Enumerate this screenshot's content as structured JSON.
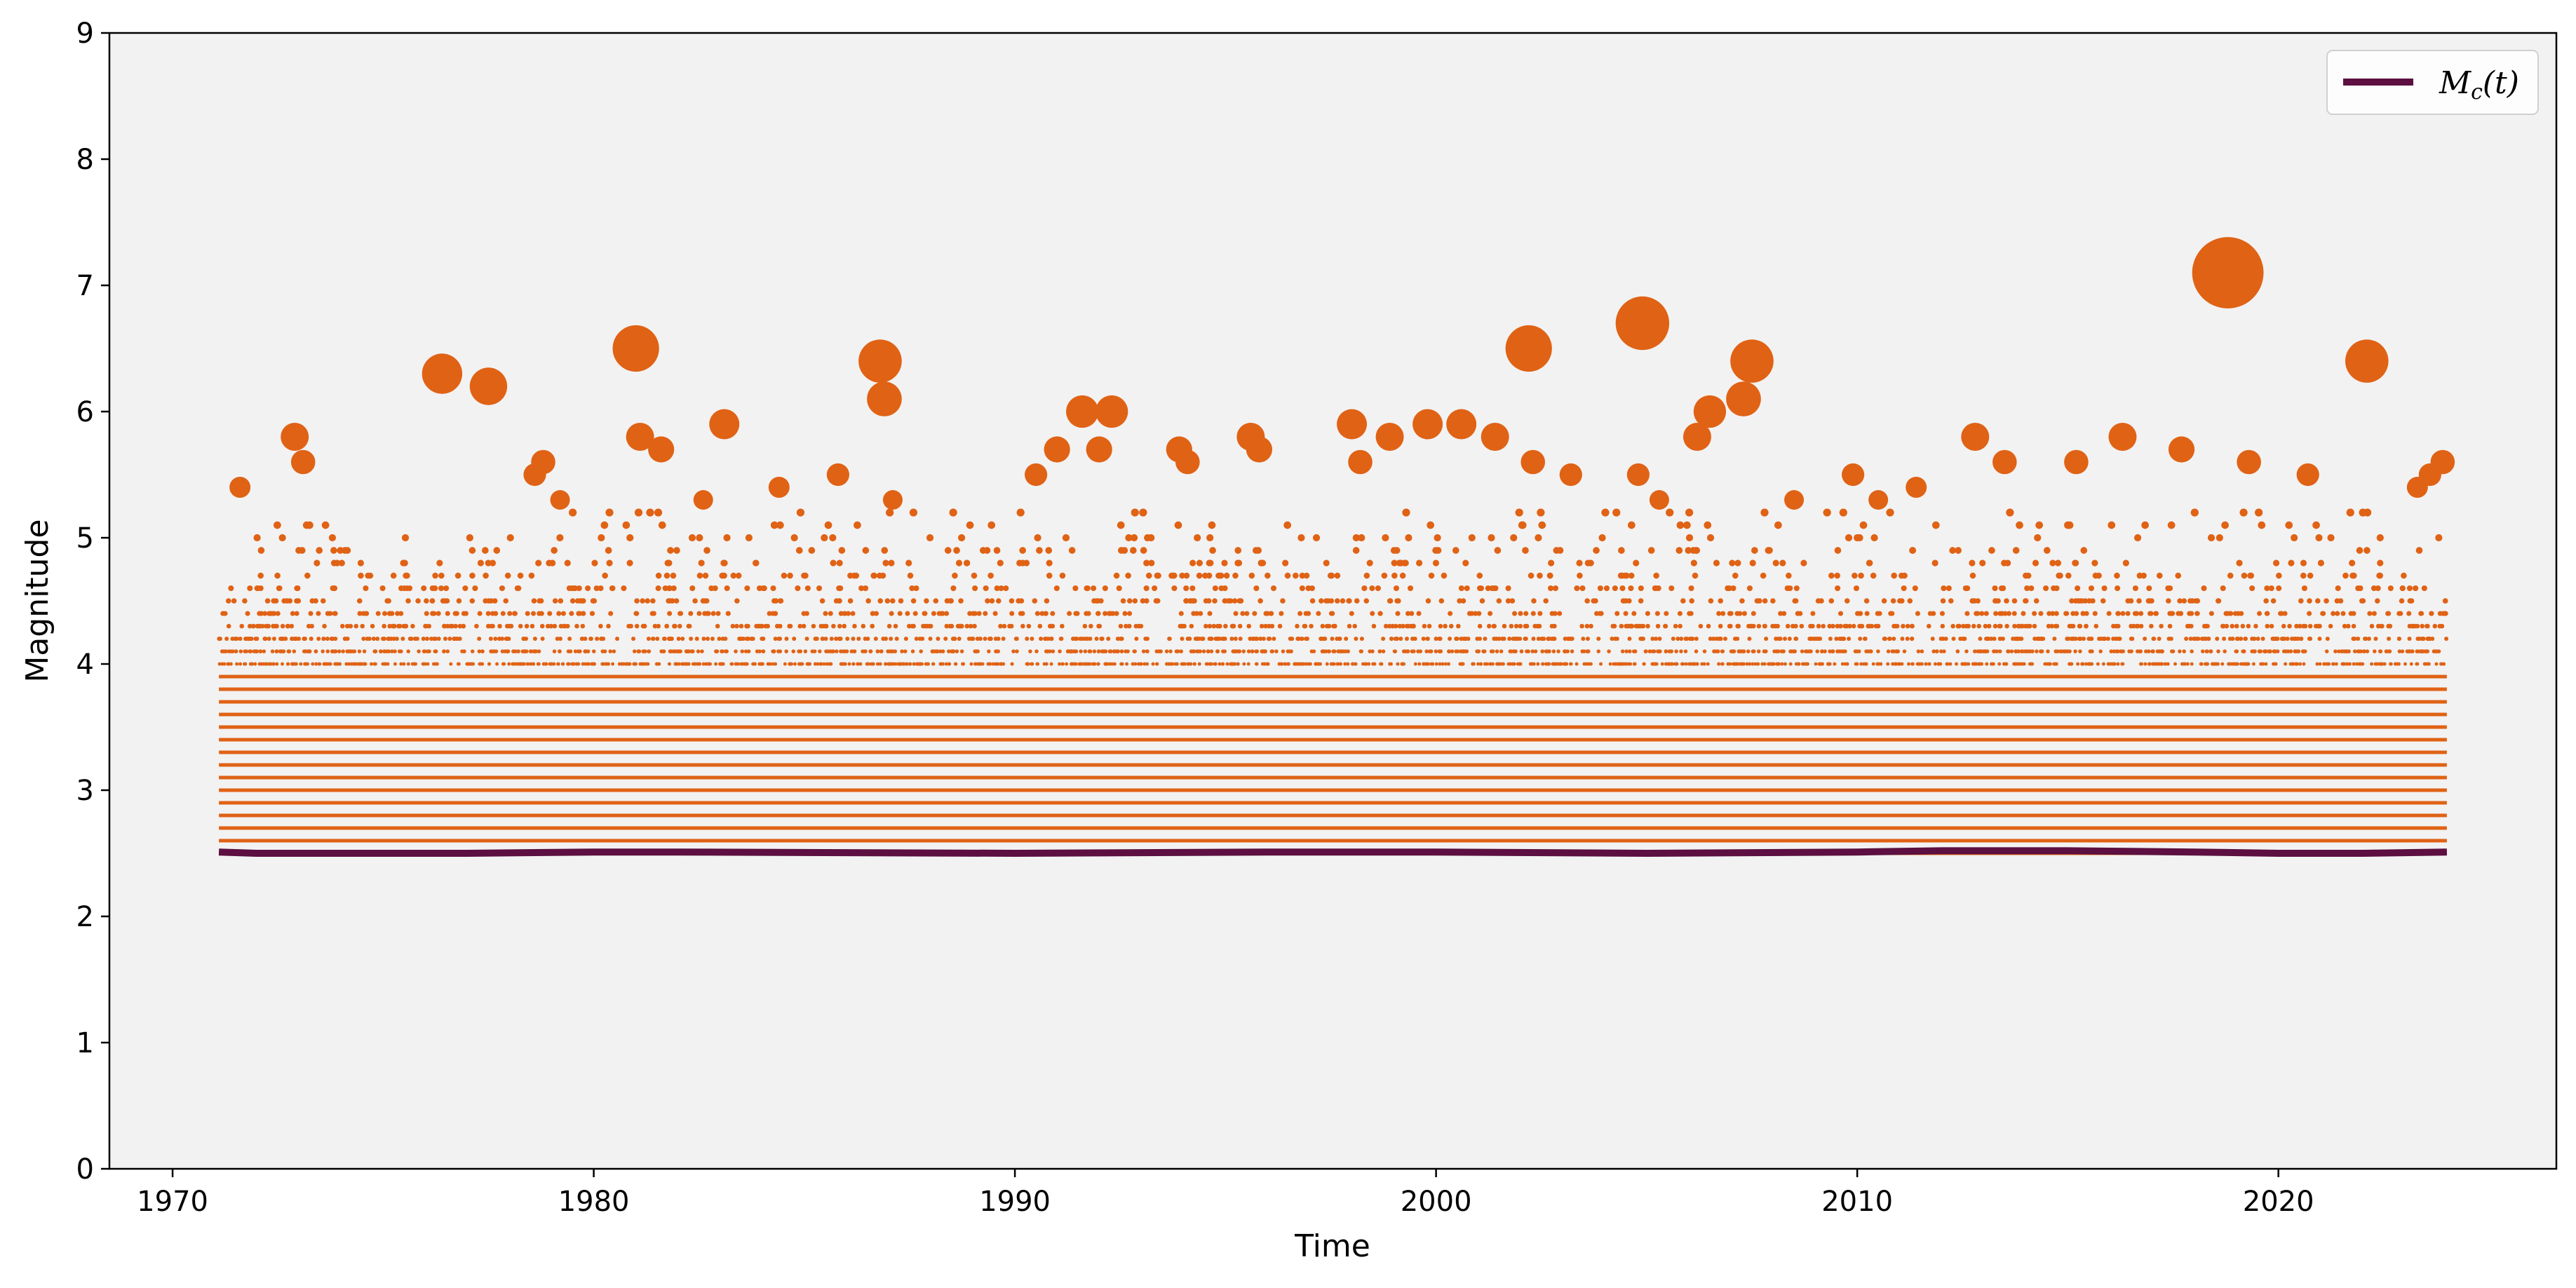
{
  "chart_data": {
    "type": "scatter",
    "title": "",
    "xlabel": "Time",
    "ylabel": "Magnitude",
    "xlim": [
      1968.5,
      2026.6
    ],
    "ylim": [
      0,
      9
    ],
    "xticks": [
      "1970",
      "1980",
      "1990",
      "2000",
      "2010",
      "2020"
    ],
    "yticks": [
      "0",
      "1",
      "2",
      "3",
      "4",
      "5",
      "6",
      "7",
      "8",
      "9"
    ],
    "grid": false,
    "background": "#f2f2f2",
    "legend": {
      "placement": "top-right",
      "entries": [
        "M_c(t)"
      ]
    },
    "colors": {
      "events": "#e06215",
      "mc_line": "#5c0f40"
    },
    "dense_band": {
      "x_start": 1971.1,
      "x_end": 2024.0,
      "m_min": 2.5,
      "m_max": 3.9,
      "step": 0.1
    },
    "mc_series": {
      "name": "M_c(t)",
      "x": [
        1971.1,
        1972.0,
        1977.0,
        1980.0,
        1982.0,
        1990.0,
        1996.0,
        2000.0,
        2005.0,
        2010.0,
        2012.0,
        2015.0,
        2018.0,
        2020.0,
        2022.0,
        2024.0
      ],
      "y": [
        2.51,
        2.5,
        2.5,
        2.51,
        2.51,
        2.5,
        2.51,
        2.51,
        2.5,
        2.51,
        2.52,
        2.52,
        2.51,
        2.5,
        2.5,
        2.51
      ]
    },
    "large_events": {
      "x": [
        1976.4,
        1977.5,
        1981.0,
        1986.8,
        1986.9,
        1991.6,
        1992.3,
        2002.2,
        2004.9,
        2006.5,
        2007.3,
        2007.5,
        2018.8,
        2022.1,
        1972.9,
        1973.1,
        1978.8,
        1981.1,
        1981.6,
        1983.1,
        1985.8,
        1990.5,
        1991.0,
        1992.0,
        1993.9,
        1994.1,
        1995.6,
        1995.8,
        1998.0,
        1998.2,
        1998.9,
        1999.8,
        2000.6,
        2001.4,
        2002.3,
        2003.2,
        2005.3,
        2006.2,
        2012.8,
        2013.5,
        2015.2,
        2016.3,
        2017.7,
        2019.3,
        2020.7,
        2023.3,
        2023.6,
        2023.9,
        1971.6,
        1978.6,
        1979.2,
        1982.6,
        1984.4,
        1987.1,
        2004.8,
        2008.5,
        2009.9,
        2010.5,
        2011.4
      ],
      "y": [
        6.3,
        6.2,
        6.5,
        6.4,
        6.1,
        6.0,
        6.0,
        6.5,
        6.7,
        6.0,
        6.1,
        6.4,
        7.1,
        6.4,
        5.8,
        5.6,
        5.6,
        5.8,
        5.7,
        5.9,
        5.5,
        5.5,
        5.7,
        5.7,
        5.7,
        5.6,
        5.8,
        5.7,
        5.9,
        5.6,
        5.8,
        5.9,
        5.9,
        5.8,
        5.6,
        5.5,
        5.3,
        5.8,
        5.8,
        5.6,
        5.6,
        5.8,
        5.7,
        5.6,
        5.5,
        5.4,
        5.5,
        5.6,
        5.4,
        5.5,
        5.3,
        5.3,
        5.4,
        5.3,
        5.5,
        5.3,
        5.5,
        5.3,
        5.4
      ]
    }
  }
}
